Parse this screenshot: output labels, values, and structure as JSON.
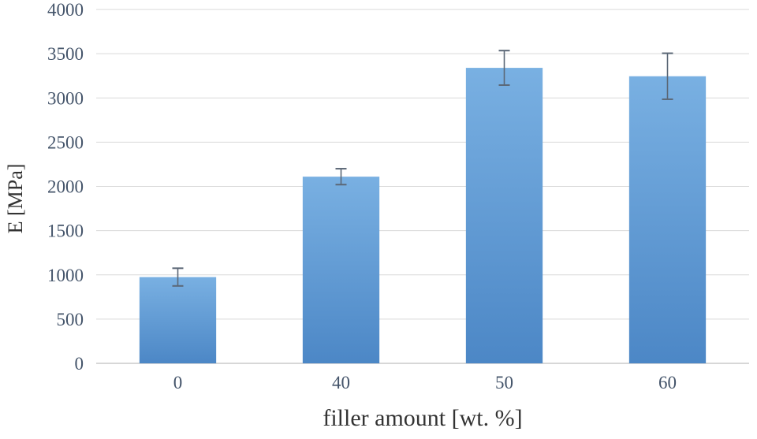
{
  "chart_data": {
    "type": "bar",
    "categories": [
      "0",
      "40",
      "50",
      "60"
    ],
    "values": [
      975,
      2110,
      3340,
      3245
    ],
    "errors": [
      100,
      90,
      195,
      260
    ],
    "title": "",
    "xlabel": "filler amount [wt. %]",
    "ylabel": "E [MPa]",
    "ylim": [
      0,
      4000
    ],
    "ytick_step": 500,
    "grid": true,
    "legend": false,
    "colors": {
      "bar_top": "#79b0e2",
      "bar_bottom": "#4c87c6",
      "error_bar": "#5b6776",
      "gridline": "#d9d9d9",
      "axis_line": "#bfbfbf",
      "tick_text": "#44546a",
      "axis_title_text": "#333333",
      "background": "#ffffff"
    }
  }
}
